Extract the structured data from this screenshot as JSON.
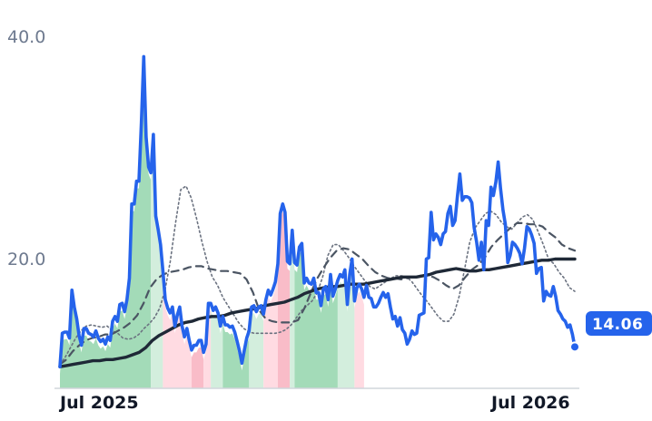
{
  "chart_data": {
    "type": "line",
    "title": "",
    "xlabel": "",
    "ylabel": "",
    "ylim": [
      10.6,
      40.0
    ],
    "y_ticks": [
      {
        "label": "40.0",
        "value": 40
      },
      {
        "label": "20.0",
        "value": 20
      }
    ],
    "x_ticks": [
      {
        "label": "Jul 2025",
        "value": 1.3
      },
      {
        "label": "Jul 2026",
        "value": 116.2
      }
    ],
    "grid": false,
    "last_value_label": "14.06",
    "series": [
      {
        "role": "main-line",
        "values": [
          12.4,
          15.2,
          15.3,
          15.3,
          14.8,
          18.8,
          17.4,
          16.4,
          15.0,
          14.2,
          15.6,
          15.6,
          15.2,
          15.1,
          14.9,
          15.4,
          14.8,
          14.5,
          14.7,
          14.3,
          14.9,
          14.6,
          16.2,
          16.6,
          16.2,
          17.6,
          17.7,
          17.0,
          18.0,
          19.8,
          26.0,
          26.0,
          27.9,
          27.9,
          32.8,
          38.3,
          31.6,
          29.1,
          28.6,
          31.8,
          25.0,
          23.9,
          22.6,
          20.4,
          18.0,
          17.3,
          16.9,
          17.4,
          15.8,
          16.7,
          17.4,
          15.8,
          14.9,
          15.6,
          14.6,
          13.8,
          14.2,
          14.2,
          14.6,
          14.6,
          13.6,
          14.3,
          17.7,
          17.7,
          17.1,
          17.4,
          16.9,
          15.8,
          16.6,
          15.9,
          15.9,
          15.7,
          15.8,
          15.3,
          14.5,
          13.7,
          12.7,
          13.8,
          14.8,
          15.4,
          17.4,
          17.5,
          17.0,
          17.4,
          17.5,
          16.8,
          18.0,
          18.8,
          18.4,
          18.9,
          19.5,
          21.0,
          25.2,
          26.0,
          25.3,
          21.2,
          21.0,
          23.8,
          21.1,
          20.9,
          22.4,
          22.7,
          19.4,
          19.8,
          19.4,
          19.3,
          19.8,
          18.6,
          18.6,
          17.5,
          18.9,
          19.1,
          18.0,
          20.1,
          18.3,
          18.9,
          19.6,
          20.1,
          19.9,
          20.5,
          17.6,
          20.1,
          21.4,
          17.9,
          19.0,
          19.3,
          18.9,
          18.2,
          19.2,
          18.2,
          18.1,
          17.4,
          17.4,
          17.7,
          18.2,
          18.6,
          18.2,
          18.5,
          17.4,
          16.4,
          16.6,
          15.8,
          16.5,
          15.5,
          15.2,
          14.3,
          14.7,
          15.4,
          15.1,
          15.2,
          16.7,
          16.8,
          16.9,
          21.4,
          21.5,
          25.3,
          23.0,
          23.5,
          23.2,
          22.6,
          23.5,
          23.7,
          25.2,
          25.8,
          24.2,
          24.6,
          26.7,
          28.5,
          26.3,
          26.6,
          26.6,
          26.5,
          26.1,
          24.0,
          22.8,
          21.3,
          22.8,
          20.5,
          24.6,
          24.2,
          27.4,
          26.7,
          27.8,
          29.5,
          27.3,
          25.5,
          24.3,
          21.1,
          21.7,
          22.8,
          22.6,
          22.3,
          21.9,
          21.0,
          22.3,
          24.1,
          23.9,
          23.4,
          22.7,
          20.2,
          20.6,
          20.7,
          17.9,
          18.7,
          18.4,
          18.3,
          19.1,
          18.3,
          17.1,
          16.8,
          16.4,
          16.2,
          15.7,
          15.9,
          15.1,
          14.06
        ]
      },
      {
        "role": "fast-average-dotted",
        "values": [
          12.6,
          13.2,
          14.0,
          14.8,
          15.4,
          15.8,
          15.9,
          15.8,
          15.7,
          15.8,
          15.4,
          15.2,
          14.8,
          14.7,
          14.8,
          15.1,
          15.6,
          16.0,
          16.5,
          17.3,
          18.8,
          21.2,
          24.4,
          27.2,
          27.5,
          26.5,
          24.8,
          22.9,
          21.2,
          19.9,
          19.2,
          18.2,
          17.5,
          16.8,
          16.1,
          15.6,
          15.3,
          15.2,
          15.2,
          15.2,
          15.2,
          15.2,
          15.3,
          15.5,
          15.9,
          16.5,
          17.1,
          17.5,
          17.9,
          18.6,
          19.9,
          21.7,
          22.6,
          22.6,
          22.1,
          21.5,
          20.8,
          20.2,
          19.6,
          19.1,
          18.9,
          19.2,
          19.5,
          19.8,
          20.0,
          20.0,
          19.9,
          19.5,
          18.9,
          18.3,
          17.8,
          17.2,
          16.6,
          16.2,
          16.2,
          16.8,
          18.3,
          20.5,
          22.8,
          24.0,
          24.6,
          25.2,
          25.4,
          25.1,
          24.5,
          24.1,
          23.9,
          24.4,
          24.9,
          25.1,
          24.7,
          23.7,
          22.6,
          21.4,
          21.0,
          20.3,
          19.8,
          19.0,
          18.7
        ]
      },
      {
        "role": "medium-average-dashed",
        "values": [
          12.6,
          13.0,
          13.7,
          14.2,
          14.6,
          14.8,
          14.9,
          15.1,
          15.1,
          15.4,
          15.7,
          16.1,
          16.7,
          17.7,
          19.0,
          19.7,
          20.1,
          20.3,
          20.4,
          20.5,
          20.7,
          20.8,
          20.8,
          20.6,
          20.5,
          20.4,
          20.4,
          20.3,
          20.2,
          19.7,
          18.6,
          17.1,
          16.4,
          16.2,
          16.1,
          16.1,
          16.1,
          16.3,
          17.3,
          18.6,
          19.8,
          20.7,
          21.5,
          22.1,
          22.3,
          22.2,
          21.8,
          21.4,
          20.8,
          20.3,
          20.0,
          19.8,
          19.8,
          19.7,
          19.8,
          19.9,
          20.0,
          20.0,
          19.9,
          19.6,
          19.2,
          18.9,
          19.2,
          19.9,
          20.5,
          20.9,
          21.5,
          22.4,
          23.0,
          23.5,
          24.0,
          24.4,
          24.4,
          24.3,
          24.3,
          24.1,
          23.6,
          23.2,
          22.6,
          22.3,
          22.1
        ]
      },
      {
        "role": "slow-average-solid",
        "values": [
          12.4,
          12.5,
          12.6,
          12.7,
          12.8,
          12.9,
          12.9,
          13.0,
          13.0,
          13.1,
          13.2,
          13.4,
          13.6,
          14.0,
          14.6,
          15.0,
          15.3,
          15.6,
          15.9,
          16.1,
          16.2,
          16.4,
          16.5,
          16.6,
          16.6,
          16.7,
          16.9,
          17.0,
          17.1,
          17.2,
          17.3,
          17.5,
          17.6,
          17.7,
          17.8,
          18.0,
          18.2,
          18.5,
          18.7,
          18.9,
          19.0,
          19.1,
          19.1,
          19.2,
          19.3,
          19.3,
          19.3,
          19.4,
          19.5,
          19.6,
          19.7,
          19.8,
          19.9,
          19.9,
          19.9,
          20.0,
          20.1,
          20.3,
          20.4,
          20.5,
          20.6,
          20.5,
          20.4,
          20.4,
          20.5,
          20.5,
          20.6,
          20.7,
          20.8,
          20.9,
          21.0,
          21.1,
          21.2,
          21.3,
          21.3,
          21.4,
          21.4,
          21.4,
          21.4
        ]
      }
    ],
    "bands": [
      {
        "color": "#a3dbb8",
        "end": 38,
        "start": 0
      },
      {
        "color": "#d3eedd",
        "end": 43,
        "start": 38
      },
      {
        "color": "#ffdbe2",
        "end": 55,
        "start": 43
      },
      {
        "color": "#f9bcc8",
        "end": 60,
        "start": 55
      },
      {
        "color": "#ffdbe2",
        "end": 63,
        "start": 60
      },
      {
        "color": "#d3eedd",
        "end": 68,
        "start": 63
      },
      {
        "color": "#a3dbb8",
        "end": 79,
        "start": 68
      },
      {
        "color": "#d3eedd",
        "end": 85,
        "start": 79
      },
      {
        "color": "#ffdbe2",
        "end": 91,
        "start": 85
      },
      {
        "color": "#f9bcc8",
        "end": 96,
        "start": 91
      },
      {
        "color": "#d3eedd",
        "end": 98,
        "start": 96
      },
      {
        "color": "#a3dbb8",
        "end": 116,
        "start": 98
      },
      {
        "color": "#d3eedd",
        "end": 123,
        "start": 116
      },
      {
        "color": "#ffdbe2",
        "end": 127,
        "start": 123
      }
    ],
    "colors": {
      "main_line": "#2563eb",
      "slow_average": "#1f2937",
      "medium_average": "#4b5563",
      "fast_average": "#6b7280",
      "badge": "#2563eb",
      "axis_text": "#6e7a8f",
      "date_text": "#111827",
      "axis_line": "#d1d5db"
    }
  }
}
